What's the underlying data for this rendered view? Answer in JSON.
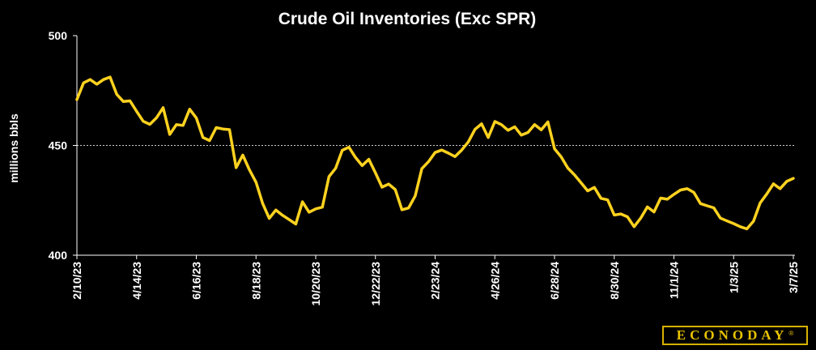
{
  "chart_data": {
    "type": "line",
    "title": "Crude Oil Inventories (Exc SPR)",
    "xlabel": "",
    "ylabel": "millions bbls",
    "ylim": [
      400,
      500
    ],
    "yticks": [
      400,
      450,
      500
    ],
    "grid": {
      "horizontal_at": [
        450
      ]
    },
    "xtick_labels": [
      "2/10/23",
      "4/14/23",
      "6/16/23",
      "8/18/23",
      "10/20/23",
      "12/22/23",
      "2/23/24",
      "4/26/24",
      "6/28/24",
      "8/30/24",
      "11/1/24",
      "1/3/25",
      "3/7/25"
    ],
    "series": [
      {
        "color": "#ffd21f",
        "values": [
          470.9,
          478.5,
          480.0,
          477.9,
          480.0,
          481.1,
          473.3,
          470.0,
          470.3,
          465.5,
          461.0,
          459.6,
          462.6,
          467.2,
          455.0,
          459.5,
          459.1,
          466.5,
          462.5,
          453.6,
          452.2,
          458.1,
          457.5,
          457.2,
          439.9,
          445.6,
          438.9,
          433.2,
          423.6,
          416.8,
          420.6,
          418.2,
          416.2,
          414.2,
          424.3,
          419.6,
          421.1,
          421.9,
          435.8,
          439.6,
          447.8,
          449.2,
          444.5,
          440.8,
          443.7,
          437.5,
          431.0,
          432.4,
          429.9,
          420.7,
          421.5,
          427.0,
          439.4,
          442.6,
          446.8,
          447.9,
          446.5,
          444.9,
          447.9,
          451.6,
          457.3,
          459.8,
          453.6,
          460.9,
          459.5,
          456.9,
          458.5,
          454.7,
          455.9,
          459.5,
          457.1,
          460.7,
          448.5,
          444.8,
          439.7,
          436.6,
          433.0,
          429.3,
          430.9,
          425.9,
          425.2,
          418.3,
          418.8,
          417.5,
          413.0,
          416.9,
          422.0,
          419.7,
          426.0,
          425.5,
          427.7,
          429.7,
          430.3,
          428.6,
          423.5,
          422.5,
          421.6,
          416.9,
          415.6,
          414.4,
          413.0,
          412.0,
          415.5,
          423.8,
          427.9,
          432.5,
          430.3,
          433.6,
          435.0
        ]
      }
    ]
  },
  "brand": {
    "name": "ECONODAY",
    "mark": "®",
    "accent": "#e8c200"
  },
  "colors": {
    "background": "#000000",
    "line": "#ffd21f",
    "text": "#ffffff",
    "gridline": "#cccccc"
  }
}
